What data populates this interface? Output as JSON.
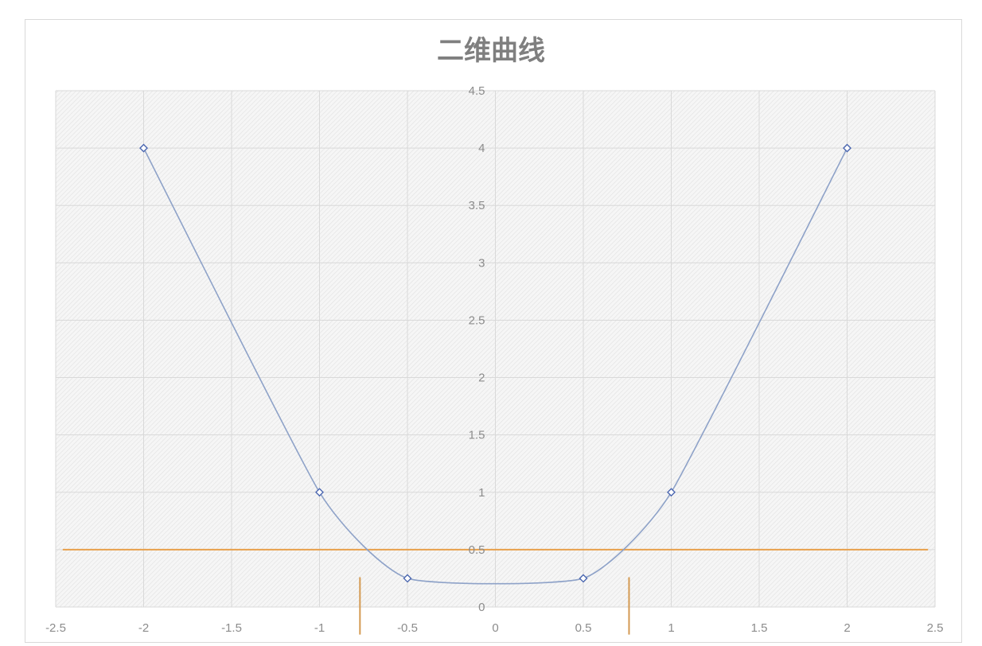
{
  "chart_data": {
    "type": "scatter",
    "title": "二维曲线",
    "xlabel": "",
    "ylabel": "",
    "xlim": [
      -2.5,
      2.5
    ],
    "ylim": [
      0,
      4.5
    ],
    "x_ticks": [
      -2.5,
      -2,
      -1.5,
      -1,
      -0.5,
      0,
      0.5,
      1,
      1.5,
      2,
      2.5
    ],
    "y_ticks": [
      0,
      0.5,
      1,
      1.5,
      2,
      2.5,
      3,
      3.5,
      4,
      4.5
    ],
    "x_tick_labels": [
      "-2.5",
      "-2",
      "-1.5",
      "-1",
      "-0.5",
      "0",
      "0.5",
      "1",
      "1.5",
      "2",
      "2.5"
    ],
    "y_tick_labels": [
      "0",
      "0.5",
      "1",
      "1.5",
      "2",
      "2.5",
      "3",
      "3.5",
      "4",
      "4.5"
    ],
    "grid": true,
    "legend": "none",
    "series": [
      {
        "color": "#8ea2c8",
        "marker_color": "#4a66b0",
        "marker": "diamond",
        "smooth": true,
        "x": [
          -2,
          -1,
          -0.5,
          0.5,
          1,
          2
        ],
        "y": [
          4,
          1,
          0.25,
          0.25,
          1,
          4
        ]
      }
    ],
    "reference_lines": [
      {
        "orientation": "horizontal",
        "value": 0.5,
        "x_range": [
          -2.46,
          2.46
        ],
        "color": "#e8a04b"
      },
      {
        "orientation": "vertical",
        "value": -0.77,
        "y_range": [
          -0.24,
          0.26
        ],
        "color": "#d49a52"
      },
      {
        "orientation": "vertical",
        "value": 0.76,
        "y_range": [
          -0.24,
          0.26
        ],
        "color": "#d49a52"
      }
    ]
  }
}
